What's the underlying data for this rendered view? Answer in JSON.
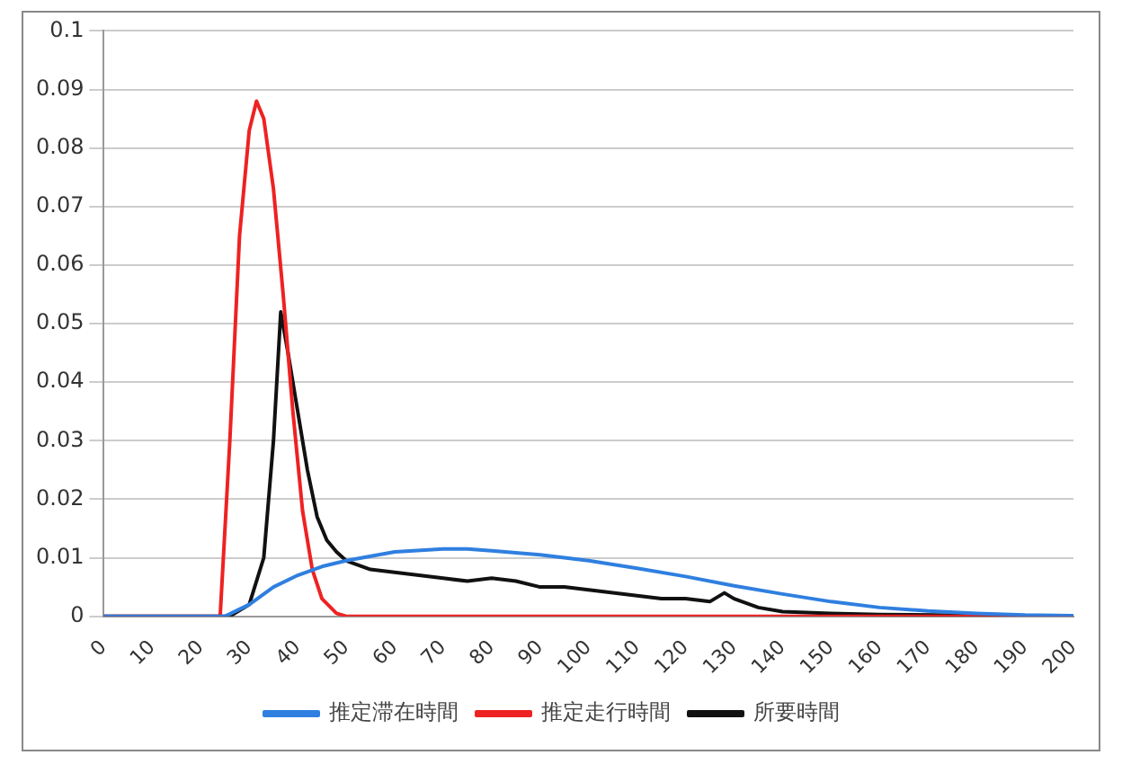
{
  "chart_data": {
    "type": "line",
    "legend": "bottom",
    "grid": "y",
    "marker": "none",
    "line_style": "solid",
    "xlim": [
      0,
      200
    ],
    "xticks": [
      0,
      10,
      20,
      30,
      40,
      50,
      60,
      70,
      80,
      90,
      100,
      110,
      120,
      130,
      140,
      150,
      160,
      170,
      180,
      190,
      200
    ],
    "ylim": [
      0,
      0.1
    ],
    "yticks": [
      0,
      0.01,
      0.02,
      0.03,
      0.04,
      0.05,
      0.06,
      0.07,
      0.08,
      0.09,
      0.1
    ],
    "series": [
      {
        "name": "推定滞在時間",
        "color": "#2f7fe0",
        "x": [
          0,
          25,
          30,
          35,
          40,
          45,
          50,
          60,
          70,
          75,
          80,
          90,
          100,
          110,
          120,
          130,
          140,
          150,
          160,
          170,
          180,
          190,
          200
        ],
        "values": [
          0,
          0,
          0.002,
          0.005,
          0.007,
          0.0085,
          0.0095,
          0.011,
          0.0115,
          0.0115,
          0.0112,
          0.0105,
          0.0095,
          0.0082,
          0.0068,
          0.0052,
          0.0038,
          0.0025,
          0.0015,
          0.0009,
          0.0005,
          0.0002,
          0.0001
        ]
      },
      {
        "name": "推定走行時間",
        "color": "#ee2222",
        "x": [
          0,
          24,
          26,
          28,
          30,
          31.5,
          33,
          35,
          37,
          39,
          41,
          43,
          45,
          48,
          50,
          200
        ],
        "values": [
          0,
          0,
          0.03,
          0.065,
          0.083,
          0.088,
          0.085,
          0.073,
          0.055,
          0.035,
          0.018,
          0.008,
          0.003,
          0.0005,
          0,
          0
        ]
      },
      {
        "name": "所要時間",
        "color": "#111111",
        "x": [
          0,
          26,
          30,
          33,
          35,
          36.5,
          38,
          40,
          42,
          44,
          46,
          48,
          50,
          55,
          60,
          65,
          70,
          75,
          80,
          85,
          90,
          95,
          100,
          105,
          110,
          115,
          120,
          125,
          128,
          130,
          135,
          140,
          150,
          160,
          200
        ],
        "values": [
          0,
          0,
          0.002,
          0.01,
          0.03,
          0.052,
          0.045,
          0.035,
          0.025,
          0.017,
          0.013,
          0.011,
          0.0095,
          0.008,
          0.0075,
          0.007,
          0.0065,
          0.006,
          0.0065,
          0.006,
          0.005,
          0.005,
          0.0045,
          0.004,
          0.0035,
          0.003,
          0.003,
          0.0025,
          0.004,
          0.003,
          0.0015,
          0.0008,
          0.0005,
          0.0003,
          0
        ]
      }
    ]
  }
}
